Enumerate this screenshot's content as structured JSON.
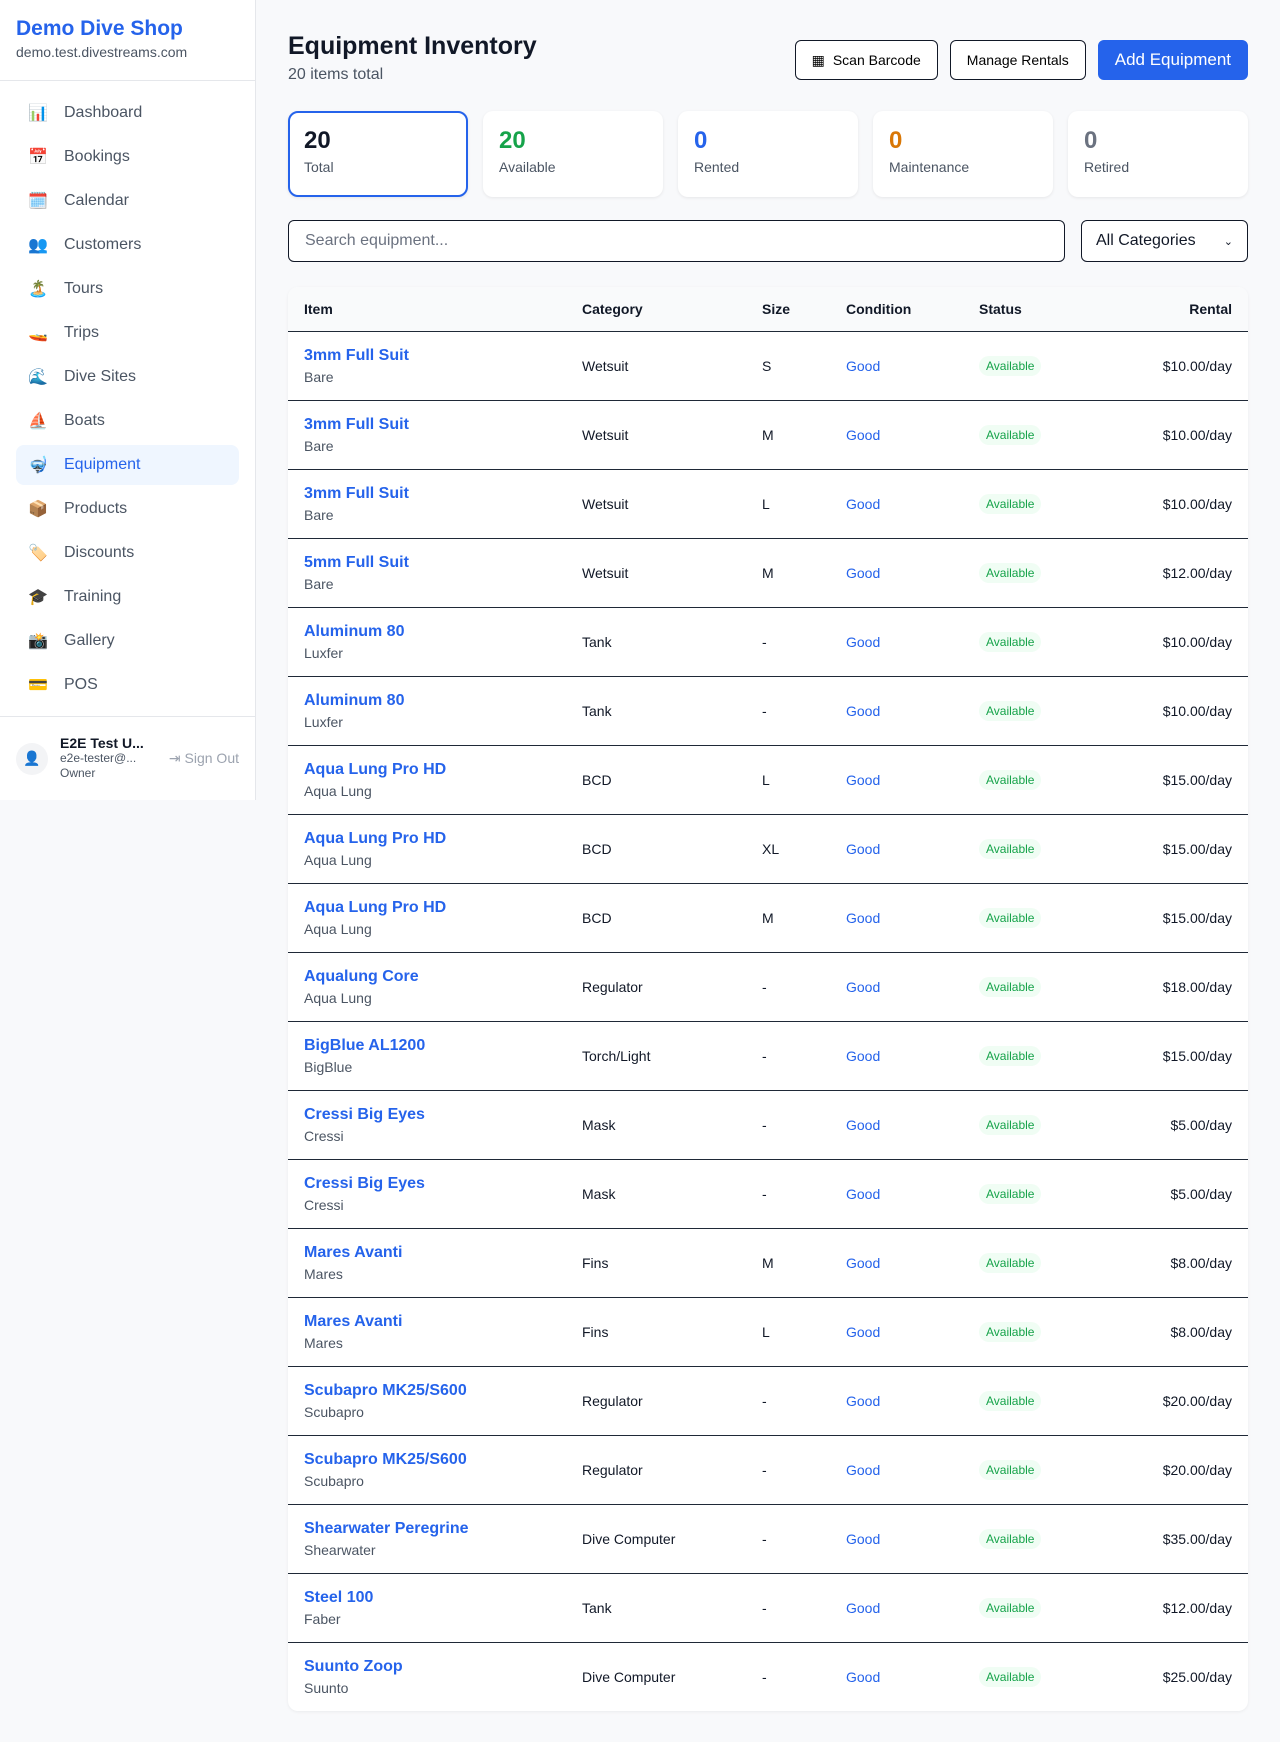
{
  "sidebar": {
    "brand": "Demo Dive Shop",
    "url": "demo.test.divestreams.com",
    "items": [
      {
        "icon": "📊",
        "label": "Dashboard"
      },
      {
        "icon": "📅",
        "label": "Bookings"
      },
      {
        "icon": "🗓️",
        "label": "Calendar"
      },
      {
        "icon": "👥",
        "label": "Customers"
      },
      {
        "icon": "🏝️",
        "label": "Tours"
      },
      {
        "icon": "🚤",
        "label": "Trips"
      },
      {
        "icon": "🌊",
        "label": "Dive Sites"
      },
      {
        "icon": "⛵",
        "label": "Boats"
      },
      {
        "icon": "🤿",
        "label": "Equipment",
        "active": true
      },
      {
        "icon": "📦",
        "label": "Products"
      },
      {
        "icon": "🏷️",
        "label": "Discounts"
      },
      {
        "icon": "🎓",
        "label": "Training"
      },
      {
        "icon": "📸",
        "label": "Gallery"
      },
      {
        "icon": "💳",
        "label": "POS"
      }
    ],
    "user": {
      "name": "E2E Test U...",
      "email": "e2e-tester@...",
      "role": "Owner",
      "signout": "Sign Out"
    }
  },
  "header": {
    "title": "Equipment Inventory",
    "subtitle": "20 items total",
    "scan": "Scan Barcode",
    "manage": "Manage Rentals",
    "add": "Add Equipment"
  },
  "stats": [
    {
      "value": "20",
      "label": "Total",
      "color": "#111827"
    },
    {
      "value": "20",
      "label": "Available",
      "color": "#16a34a"
    },
    {
      "value": "0",
      "label": "Rented",
      "color": "#2563eb"
    },
    {
      "value": "0",
      "label": "Maintenance",
      "color": "#d97706"
    },
    {
      "value": "0",
      "label": "Retired",
      "color": "#6b7280"
    }
  ],
  "filters": {
    "search_placeholder": "Search equipment...",
    "category": "All Categories"
  },
  "table": {
    "columns": [
      "Item",
      "Category",
      "Size",
      "Condition",
      "Status",
      "Rental"
    ],
    "rows": [
      [
        "3mm Full Suit",
        "Bare",
        "Wetsuit",
        "S",
        "Good",
        "Available",
        "$10.00/day"
      ],
      [
        "3mm Full Suit",
        "Bare",
        "Wetsuit",
        "M",
        "Good",
        "Available",
        "$10.00/day"
      ],
      [
        "3mm Full Suit",
        "Bare",
        "Wetsuit",
        "L",
        "Good",
        "Available",
        "$10.00/day"
      ],
      [
        "5mm Full Suit",
        "Bare",
        "Wetsuit",
        "M",
        "Good",
        "Available",
        "$12.00/day"
      ],
      [
        "Aluminum 80",
        "Luxfer",
        "Tank",
        "-",
        "Good",
        "Available",
        "$10.00/day"
      ],
      [
        "Aluminum 80",
        "Luxfer",
        "Tank",
        "-",
        "Good",
        "Available",
        "$10.00/day"
      ],
      [
        "Aqua Lung Pro HD",
        "Aqua Lung",
        "BCD",
        "L",
        "Good",
        "Available",
        "$15.00/day"
      ],
      [
        "Aqua Lung Pro HD",
        "Aqua Lung",
        "BCD",
        "XL",
        "Good",
        "Available",
        "$15.00/day"
      ],
      [
        "Aqua Lung Pro HD",
        "Aqua Lung",
        "BCD",
        "M",
        "Good",
        "Available",
        "$15.00/day"
      ],
      [
        "Aqualung Core",
        "Aqua Lung",
        "Regulator",
        "-",
        "Good",
        "Available",
        "$18.00/day"
      ],
      [
        "BigBlue AL1200",
        "BigBlue",
        "Torch/Light",
        "-",
        "Good",
        "Available",
        "$15.00/day"
      ],
      [
        "Cressi Big Eyes",
        "Cressi",
        "Mask",
        "-",
        "Good",
        "Available",
        "$5.00/day"
      ],
      [
        "Cressi Big Eyes",
        "Cressi",
        "Mask",
        "-",
        "Good",
        "Available",
        "$5.00/day"
      ],
      [
        "Mares Avanti",
        "Mares",
        "Fins",
        "M",
        "Good",
        "Available",
        "$8.00/day"
      ],
      [
        "Mares Avanti",
        "Mares",
        "Fins",
        "L",
        "Good",
        "Available",
        "$8.00/day"
      ],
      [
        "Scubapro MK25/S600",
        "Scubapro",
        "Regulator",
        "-",
        "Good",
        "Available",
        "$20.00/day"
      ],
      [
        "Scubapro MK25/S600",
        "Scubapro",
        "Regulator",
        "-",
        "Good",
        "Available",
        "$20.00/day"
      ],
      [
        "Shearwater Peregrine",
        "Shearwater",
        "Dive Computer",
        "-",
        "Good",
        "Available",
        "$35.00/day"
      ],
      [
        "Steel 100",
        "Faber",
        "Tank",
        "-",
        "Good",
        "Available",
        "$12.00/day"
      ],
      [
        "Suunto Zoop",
        "Suunto",
        "Dive Computer",
        "-",
        "Good",
        "Available",
        "$25.00/day"
      ]
    ]
  }
}
